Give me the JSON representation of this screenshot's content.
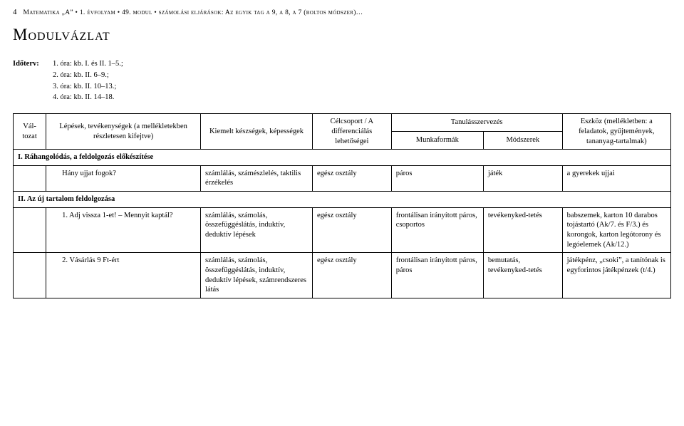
{
  "header": {
    "page_num": "4",
    "breadcrumb": "Matematika „A” • 1. évfolyam • 49. modul • számolási eljárások: Az egyik tag a 9, a 8, a 7 (boltos módszer)…"
  },
  "title": "Modulvázlat",
  "schedule": {
    "label": "Időterv:",
    "lines": [
      "1. óra: kb. I. és II. 1–5.;",
      "2. óra: kb. II. 6–9.;",
      "3. óra: kb. II. 10–13.;",
      "4. óra: kb. II. 14–18."
    ]
  },
  "table": {
    "headers": {
      "h1": "Vál-\ntozat",
      "h2": "Lépések, tevékenységek\n(a mellékletekben részletesen kifejtve)",
      "h3": "Kiemelt készségek, képességek",
      "h4": "Célcsoport /\nA differenciálás lehetőségei",
      "h5": "Tanulásszervezés",
      "h5a": "Munkaformák",
      "h5b": "Módszerek",
      "h6": "Eszköz\n(mellékletben: a feladatok, gyűjtemények, tananyag-tartalmak)"
    },
    "sectionI": "I. Ráhangolódás, a feldolgozás előkészítése",
    "rowI1": {
      "c2": "Hány ujjat fogok?",
      "c3": "számlálás, számészlelés, taktilis érzékelés",
      "c4": "egész osztály",
      "c5": "páros",
      "c6": "játék",
      "c7": "a gyerekek ujjai"
    },
    "sectionII": "II. Az új tartalom feldolgozása",
    "rowII1": {
      "c2": "1.  Adj vissza 1-et! – Mennyit kaptál?",
      "c3": "számlálás, számolás, összefüggéslátás, induktív, deduktív lépések",
      "c4": "egész osztály",
      "c5": "frontálisan irányított páros, csoportos",
      "c6": "tevékenyked-tetés",
      "c7": "babszemek, karton 10 darabos tojástartó (Ak/7. és F/3.) és korongok, karton legótorony és legóelemek (Ak/12.)"
    },
    "rowII2": {
      "c2": "2.  Vásárlás 9 Ft-ért",
      "c3": "számlálás, számolás, összefüggéslátás, induktív, deduktív lépések, számrendszeres látás",
      "c4": "egész osztály",
      "c5": "frontálisan irányított páros, páros",
      "c6": "bemutatás, tevékenyked-tetés",
      "c7": "játékpénz, „csoki”, a tanítónak is egyforintos játékpénzek (t/4.)"
    }
  }
}
